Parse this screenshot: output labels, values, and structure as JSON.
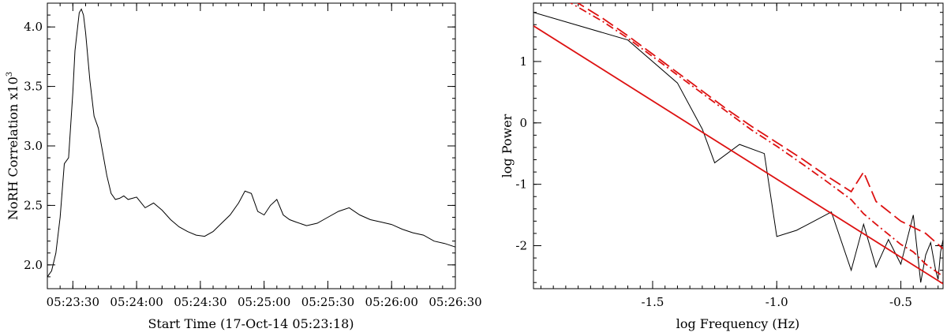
{
  "chart_data": [
    {
      "type": "line",
      "xlabel": "Start Time (17-Oct-14 05:23:18)",
      "ylabel": "NoRH Correlation x10",
      "ylabel_superscript": "3",
      "xlim_seconds_after_start": [
        0,
        192
      ],
      "ylim": [
        1.8,
        4.2
      ],
      "x_tick_labels": [
        "05:23:30",
        "05:24:00",
        "05:24:30",
        "05:25:00",
        "05:25:30",
        "05:26:00",
        "05:26:30"
      ],
      "y_tick_labels": [
        "2.0",
        "2.5",
        "3.0",
        "3.5",
        "4.0"
      ],
      "series": [
        {
          "color": "#000000",
          "x": [
            "05:23:18",
            "05:23:20",
            "05:23:22",
            "05:23:24",
            "05:23:26",
            "05:23:28",
            "05:23:30",
            "05:23:31",
            "05:23:33",
            "05:23:34",
            "05:23:35",
            "05:23:36",
            "05:23:38",
            "05:23:40",
            "05:23:42",
            "05:23:44",
            "05:23:46",
            "05:23:48",
            "05:23:50",
            "05:23:52",
            "05:23:54",
            "05:23:56",
            "05:24:00",
            "05:24:04",
            "05:24:08",
            "05:24:12",
            "05:24:16",
            "05:24:20",
            "05:24:24",
            "05:24:28",
            "05:24:32",
            "05:24:36",
            "05:24:40",
            "05:24:44",
            "05:24:48",
            "05:24:51",
            "05:24:54",
            "05:24:57",
            "05:25:00",
            "05:25:03",
            "05:25:06",
            "05:25:09",
            "05:25:12",
            "05:25:15",
            "05:25:20",
            "05:25:25",
            "05:25:30",
            "05:25:35",
            "05:25:40",
            "05:25:45",
            "05:25:50",
            "05:25:55",
            "05:26:00",
            "05:26:05",
            "05:26:10",
            "05:26:15",
            "05:26:20",
            "05:26:25",
            "05:26:30"
          ],
          "y": [
            1.9,
            1.95,
            2.1,
            2.4,
            2.85,
            2.9,
            3.45,
            3.8,
            4.12,
            4.15,
            4.1,
            3.95,
            3.55,
            3.25,
            3.15,
            2.95,
            2.75,
            2.6,
            2.55,
            2.56,
            2.58,
            2.55,
            2.57,
            2.48,
            2.52,
            2.46,
            2.38,
            2.32,
            2.28,
            2.25,
            2.24,
            2.28,
            2.35,
            2.42,
            2.52,
            2.62,
            2.6,
            2.45,
            2.42,
            2.5,
            2.55,
            2.42,
            2.38,
            2.36,
            2.33,
            2.35,
            2.4,
            2.45,
            2.48,
            2.42,
            2.38,
            2.36,
            2.34,
            2.3,
            2.27,
            2.25,
            2.2,
            2.18,
            2.15
          ]
        }
      ]
    },
    {
      "type": "line",
      "xlabel": "log Frequency (Hz)",
      "ylabel": "log Power",
      "xlim": [
        -1.98,
        -0.33
      ],
      "ylim": [
        -2.7,
        1.95
      ],
      "x_tick_labels": [
        "-1.5",
        "-1.0",
        "-0.5"
      ],
      "y_tick_labels": [
        "1",
        "0",
        "-1",
        "-2"
      ],
      "series": [
        {
          "style": "solid",
          "color": "#000000",
          "x": [
            -1.98,
            -1.6,
            -1.4,
            -1.3,
            -1.25,
            -1.15,
            -1.05,
            -1.0,
            -0.92,
            -0.85,
            -0.78,
            -0.7,
            -0.65,
            -0.6,
            -0.55,
            -0.5,
            -0.45,
            -0.42,
            -0.4,
            -0.38,
            -0.36,
            -0.35,
            -0.34,
            -0.33
          ],
          "y": [
            1.8,
            1.35,
            0.65,
            -0.1,
            -0.65,
            -0.35,
            -0.5,
            -1.85,
            -1.75,
            -1.6,
            -1.45,
            -2.4,
            -1.65,
            -2.35,
            -1.9,
            -2.3,
            -1.5,
            -2.6,
            -2.15,
            -1.95,
            -2.4,
            -2.55,
            -2.1,
            -1.9
          ]
        },
        {
          "style": "solid",
          "color": "#dd1111",
          "x": [
            -1.98,
            -0.33
          ],
          "y": [
            1.58,
            -2.62
          ]
        },
        {
          "style": "dash-dot",
          "color": "#dd1111",
          "x": [
            -1.85,
            -1.7,
            -1.6,
            -1.5,
            -1.4,
            -1.3,
            -1.2,
            -1.1,
            -1.0,
            -0.9,
            -0.8,
            -0.7,
            -0.65,
            -0.6,
            -0.5,
            -0.45,
            -0.4,
            -0.33
          ],
          "y": [
            2.0,
            1.65,
            1.38,
            1.08,
            0.78,
            0.48,
            0.18,
            -0.12,
            -0.38,
            -0.66,
            -0.95,
            -1.25,
            -1.48,
            -1.65,
            -1.98,
            -2.1,
            -2.3,
            -2.5
          ]
        },
        {
          "style": "long-dash",
          "color": "#dd1111",
          "x": [
            -1.82,
            -1.7,
            -1.6,
            -1.5,
            -1.4,
            -1.3,
            -1.2,
            -1.1,
            -1.0,
            -0.9,
            -0.8,
            -0.7,
            -0.65,
            -0.6,
            -0.5,
            -0.45,
            -0.4,
            -0.33
          ],
          "y": [
            2.0,
            1.7,
            1.42,
            1.12,
            0.82,
            0.52,
            0.22,
            -0.06,
            -0.32,
            -0.58,
            -0.86,
            -1.12,
            -0.8,
            -1.28,
            -1.6,
            -1.7,
            -1.8,
            -2.05
          ]
        }
      ]
    }
  ]
}
